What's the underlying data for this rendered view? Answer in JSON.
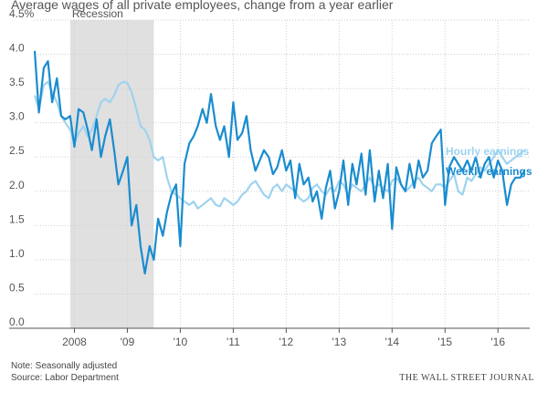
{
  "title": "Average wages of all private employees, change from a year earlier",
  "notes": {
    "note": "Note: Seasonally adjusted",
    "source": "Source: Labor Department",
    "publisher": "THE WALL STREET JOURNAL"
  },
  "chart_data": {
    "type": "line",
    "title": "Average wages of all private employees, change from a year earlier",
    "xlim": [
      2007.25,
      2016.6
    ],
    "ylim": [
      0,
      4.5
    ],
    "yticks": [
      {
        "value": 0,
        "label": "0.0"
      },
      {
        "value": 0.5,
        "label": "0.5"
      },
      {
        "value": 1.0,
        "label": "1.0"
      },
      {
        "value": 1.5,
        "label": "1.5"
      },
      {
        "value": 2.0,
        "label": "2.0"
      },
      {
        "value": 2.5,
        "label": "2.5"
      },
      {
        "value": 3.0,
        "label": "3.0"
      },
      {
        "value": 3.5,
        "label": "3.5"
      },
      {
        "value": 4.0,
        "label": "4.0"
      },
      {
        "value": 4.5,
        "label": "4.5%"
      }
    ],
    "xticks": [
      {
        "value": 2008,
        "label": "2008"
      },
      {
        "value": 2009,
        "label": "'09"
      },
      {
        "value": 2010,
        "label": "'10"
      },
      {
        "value": 2011,
        "label": "'11"
      },
      {
        "value": 2012,
        "label": "'12"
      },
      {
        "value": 2013,
        "label": "'13"
      },
      {
        "value": 2014,
        "label": "'14"
      },
      {
        "value": 2015,
        "label": "'15"
      },
      {
        "value": 2016,
        "label": "'16"
      }
    ],
    "recession": {
      "label": "Recession",
      "start": 2007.92,
      "end": 2009.5,
      "color": "#e0e0e0"
    },
    "grid": true,
    "series": [
      {
        "name": "Hourly earnings",
        "color": "#9fd3ef",
        "x": [
          2007.25,
          2007.33,
          2007.42,
          2007.5,
          2007.58,
          2007.67,
          2007.75,
          2007.83,
          2007.92,
          2008.0,
          2008.08,
          2008.17,
          2008.25,
          2008.33,
          2008.42,
          2008.5,
          2008.58,
          2008.67,
          2008.75,
          2008.83,
          2008.92,
          2009.0,
          2009.08,
          2009.17,
          2009.25,
          2009.33,
          2009.42,
          2009.5,
          2009.58,
          2009.67,
          2009.75,
          2009.83,
          2009.92,
          2010.0,
          2010.08,
          2010.17,
          2010.25,
          2010.33,
          2010.42,
          2010.5,
          2010.58,
          2010.67,
          2010.75,
          2010.83,
          2010.92,
          2011.0,
          2011.08,
          2011.17,
          2011.25,
          2011.33,
          2011.42,
          2011.5,
          2011.58,
          2011.67,
          2011.75,
          2011.83,
          2011.92,
          2012.0,
          2012.08,
          2012.17,
          2012.25,
          2012.33,
          2012.42,
          2012.5,
          2012.58,
          2012.67,
          2012.75,
          2012.83,
          2012.92,
          2013.0,
          2013.08,
          2013.17,
          2013.25,
          2013.33,
          2013.42,
          2013.5,
          2013.58,
          2013.67,
          2013.75,
          2013.83,
          2013.92,
          2014.0,
          2014.08,
          2014.17,
          2014.25,
          2014.33,
          2014.42,
          2014.5,
          2014.58,
          2014.67,
          2014.75,
          2014.83,
          2014.92,
          2015.0,
          2015.08,
          2015.17,
          2015.25,
          2015.33,
          2015.42,
          2015.5,
          2015.58,
          2015.67,
          2015.75,
          2015.83,
          2015.92,
          2016.0,
          2016.08,
          2016.17,
          2016.25,
          2016.33,
          2016.42,
          2016.5
        ],
        "y": [
          3.4,
          3.2,
          3.55,
          3.6,
          3.45,
          3.3,
          3.1,
          3.0,
          2.9,
          2.7,
          2.85,
          2.95,
          2.8,
          2.9,
          3.1,
          3.3,
          3.35,
          3.3,
          3.4,
          3.55,
          3.6,
          3.58,
          3.45,
          3.2,
          2.95,
          2.9,
          2.75,
          2.5,
          2.45,
          2.5,
          2.2,
          2.0,
          1.95,
          1.9,
          1.85,
          1.8,
          1.85,
          1.75,
          1.8,
          1.85,
          1.9,
          1.8,
          1.78,
          1.9,
          1.85,
          1.8,
          1.85,
          1.95,
          2.0,
          2.1,
          2.15,
          2.05,
          1.95,
          1.9,
          2.05,
          2.1,
          2.0,
          2.1,
          2.05,
          2.0,
          1.9,
          1.85,
          1.9,
          2.05,
          2.1,
          2.0,
          1.95,
          2.05,
          2.0,
          2.15,
          2.1,
          1.95,
          2.1,
          2.05,
          2.0,
          2.1,
          2.2,
          2.05,
          2.1,
          2.05,
          2.0,
          2.15,
          2.2,
          2.1,
          2.0,
          2.05,
          2.15,
          2.2,
          2.1,
          2.05,
          2.0,
          2.1,
          2.1,
          2.05,
          2.15,
          2.25,
          2.0,
          1.95,
          2.2,
          2.15,
          2.25,
          2.35,
          2.3,
          2.4,
          2.5,
          2.6,
          2.5,
          2.4,
          2.45,
          2.5,
          2.55,
          2.6
        ]
      },
      {
        "name": "Weekly earnings",
        "color": "#1a8ccf",
        "x": [
          2007.25,
          2007.33,
          2007.42,
          2007.5,
          2007.58,
          2007.67,
          2007.75,
          2007.83,
          2007.92,
          2008.0,
          2008.08,
          2008.17,
          2008.25,
          2008.33,
          2008.42,
          2008.5,
          2008.58,
          2008.67,
          2008.75,
          2008.83,
          2008.92,
          2009.0,
          2009.08,
          2009.17,
          2009.25,
          2009.33,
          2009.42,
          2009.5,
          2009.58,
          2009.67,
          2009.75,
          2009.83,
          2009.92,
          2010.0,
          2010.08,
          2010.17,
          2010.25,
          2010.33,
          2010.42,
          2010.5,
          2010.58,
          2010.67,
          2010.75,
          2010.83,
          2010.92,
          2011.0,
          2011.08,
          2011.17,
          2011.25,
          2011.33,
          2011.42,
          2011.5,
          2011.58,
          2011.67,
          2011.75,
          2011.83,
          2011.92,
          2012.0,
          2012.08,
          2012.17,
          2012.25,
          2012.33,
          2012.42,
          2012.5,
          2012.58,
          2012.67,
          2012.75,
          2012.83,
          2012.92,
          2013.0,
          2013.08,
          2013.17,
          2013.25,
          2013.33,
          2013.42,
          2013.5,
          2013.58,
          2013.67,
          2013.75,
          2013.83,
          2013.92,
          2014.0,
          2014.08,
          2014.17,
          2014.25,
          2014.33,
          2014.42,
          2014.5,
          2014.58,
          2014.67,
          2014.75,
          2014.83,
          2014.92,
          2015.0,
          2015.08,
          2015.17,
          2015.25,
          2015.33,
          2015.42,
          2015.5,
          2015.58,
          2015.67,
          2015.75,
          2015.83,
          2015.92,
          2016.0,
          2016.08,
          2016.17,
          2016.25,
          2016.33,
          2016.42,
          2016.5
        ],
        "y": [
          4.05,
          3.15,
          3.8,
          3.9,
          3.3,
          3.65,
          3.1,
          3.05,
          3.1,
          2.65,
          3.2,
          3.15,
          2.9,
          2.6,
          3.05,
          2.5,
          2.8,
          3.05,
          2.6,
          2.1,
          2.3,
          2.5,
          1.5,
          1.8,
          1.2,
          0.8,
          1.2,
          1.0,
          1.6,
          1.35,
          1.7,
          1.95,
          2.1,
          1.2,
          2.4,
          2.7,
          2.8,
          2.95,
          3.2,
          3.0,
          3.42,
          2.95,
          2.75,
          2.95,
          2.5,
          3.3,
          2.75,
          2.85,
          3.1,
          2.6,
          2.3,
          2.45,
          2.6,
          2.5,
          2.25,
          2.35,
          2.6,
          2.3,
          2.45,
          1.9,
          2.4,
          2.1,
          2.2,
          1.85,
          2.0,
          1.6,
          2.05,
          2.3,
          1.75,
          2.0,
          2.45,
          1.8,
          2.4,
          2.1,
          2.55,
          1.95,
          2.6,
          1.85,
          2.3,
          1.9,
          2.4,
          1.45,
          2.35,
          2.1,
          2.0,
          2.4,
          2.05,
          2.45,
          2.2,
          2.3,
          2.7,
          2.8,
          2.9,
          1.8,
          2.35,
          2.5,
          2.4,
          2.3,
          2.45,
          2.3,
          2.5,
          2.2,
          2.4,
          2.5,
          2.2,
          2.45,
          2.3,
          1.8,
          2.1,
          2.2,
          2.2,
          2.3
        ]
      }
    ]
  }
}
